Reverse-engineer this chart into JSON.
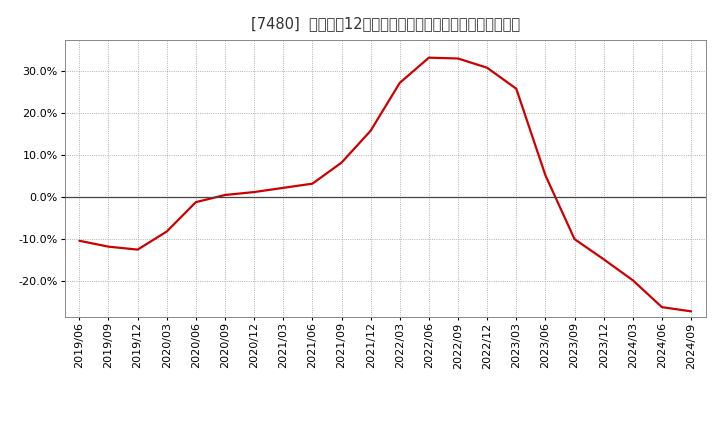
{
  "line_color": "#cc0000",
  "background_color": "#ffffff",
  "plot_bg_color": "#ffffff",
  "grid_color": "#999999",
  "zero_line_color": "#444444",
  "ylim": [
    -0.285,
    0.375
  ],
  "yticks": [
    -0.2,
    -0.1,
    0.0,
    0.1,
    0.2,
    0.3
  ],
  "dates": [
    "2019/06",
    "2019/09",
    "2019/12",
    "2020/03",
    "2020/06",
    "2020/09",
    "2020/12",
    "2021/03",
    "2021/06",
    "2021/09",
    "2021/12",
    "2022/03",
    "2022/06",
    "2022/09",
    "2022/12",
    "2023/03",
    "2023/06",
    "2023/09",
    "2023/12",
    "2024/03",
    "2024/06",
    "2024/09"
  ],
  "values": [
    -0.104,
    -0.118,
    -0.125,
    -0.082,
    -0.012,
    0.005,
    0.012,
    0.022,
    0.032,
    0.082,
    0.158,
    0.272,
    0.332,
    0.33,
    0.308,
    0.258,
    0.052,
    -0.1,
    -0.148,
    -0.198,
    -0.262,
    -0.272
  ],
  "title_fontsize": 10.5,
  "tick_fontsize": 8,
  "linewidth": 1.6
}
